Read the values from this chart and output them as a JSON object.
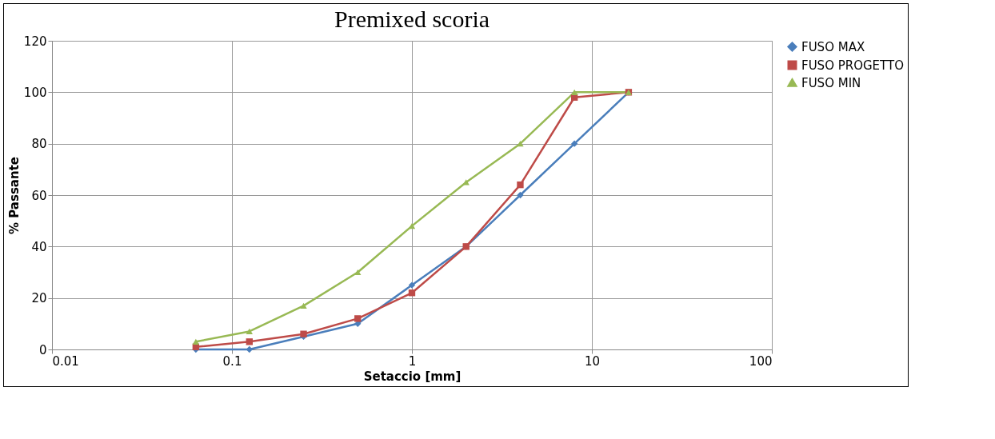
{
  "chart_data": {
    "type": "line",
    "title": "Premixed scoria",
    "xlabel": "Setaccio [mm]",
    "ylabel": "% Passante",
    "x": [
      0.063,
      0.125,
      0.25,
      0.5,
      1,
      2,
      4,
      8,
      16
    ],
    "series": [
      {
        "name": "FUSO MAX",
        "color": "#4a7ebb",
        "marker": "diamond",
        "values": [
          0,
          0,
          5,
          10,
          25,
          40,
          60,
          80,
          100
        ]
      },
      {
        "name": "FUSO PROGETTO",
        "color": "#be4b48",
        "marker": "square",
        "values": [
          1,
          3,
          6,
          12,
          22,
          40,
          64,
          98,
          100
        ]
      },
      {
        "name": "FUSO MIN",
        "color": "#98b954",
        "marker": "triangle",
        "values": [
          3,
          7,
          17,
          30,
          48,
          65,
          80,
          100,
          100
        ]
      }
    ],
    "log": "x",
    "xlim": [
      0.01,
      100
    ],
    "xticks": [
      0.01,
      0.1,
      1,
      10,
      100
    ],
    "ylim": [
      0,
      120
    ],
    "yticks": [
      0,
      20,
      40,
      60,
      80,
      100,
      120
    ],
    "grid": true,
    "legend": "right"
  }
}
